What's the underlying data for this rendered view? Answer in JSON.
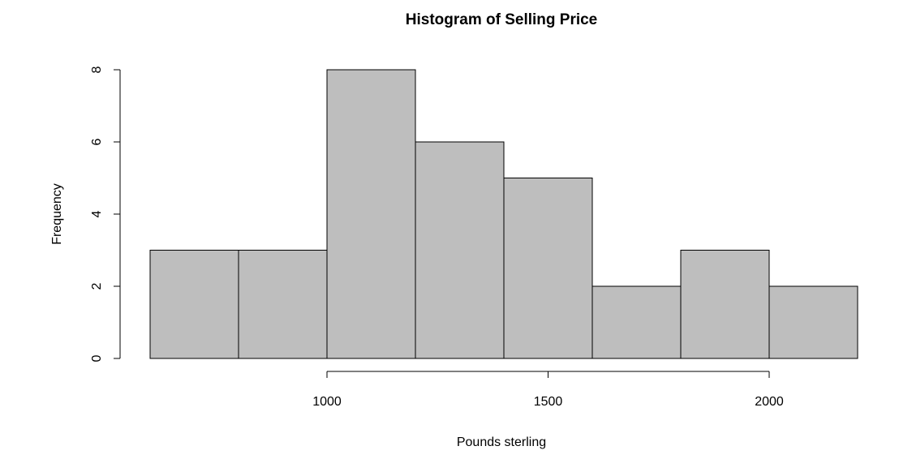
{
  "chart_data": {
    "type": "bar",
    "title": "Histogram of Selling Price",
    "xlabel": "Pounds sterling",
    "ylabel": "Frequency",
    "bins": [
      {
        "from": 600,
        "to": 800,
        "count": 3
      },
      {
        "from": 800,
        "to": 1000,
        "count": 3
      },
      {
        "from": 1000,
        "to": 1200,
        "count": 8
      },
      {
        "from": 1200,
        "to": 1400,
        "count": 6
      },
      {
        "from": 1400,
        "to": 1600,
        "count": 5
      },
      {
        "from": 1600,
        "to": 1800,
        "count": 2
      },
      {
        "from": 1800,
        "to": 2000,
        "count": 3
      },
      {
        "from": 2000,
        "to": 2200,
        "count": 2
      }
    ],
    "xlim": [
      600,
      2200
    ],
    "ylim": [
      0,
      8
    ],
    "x_ticks": [
      "1000",
      "1500",
      "2000"
    ],
    "y_ticks": [
      "0",
      "2",
      "4",
      "6",
      "8"
    ],
    "bar_color": "#bebebe",
    "grid": false
  }
}
